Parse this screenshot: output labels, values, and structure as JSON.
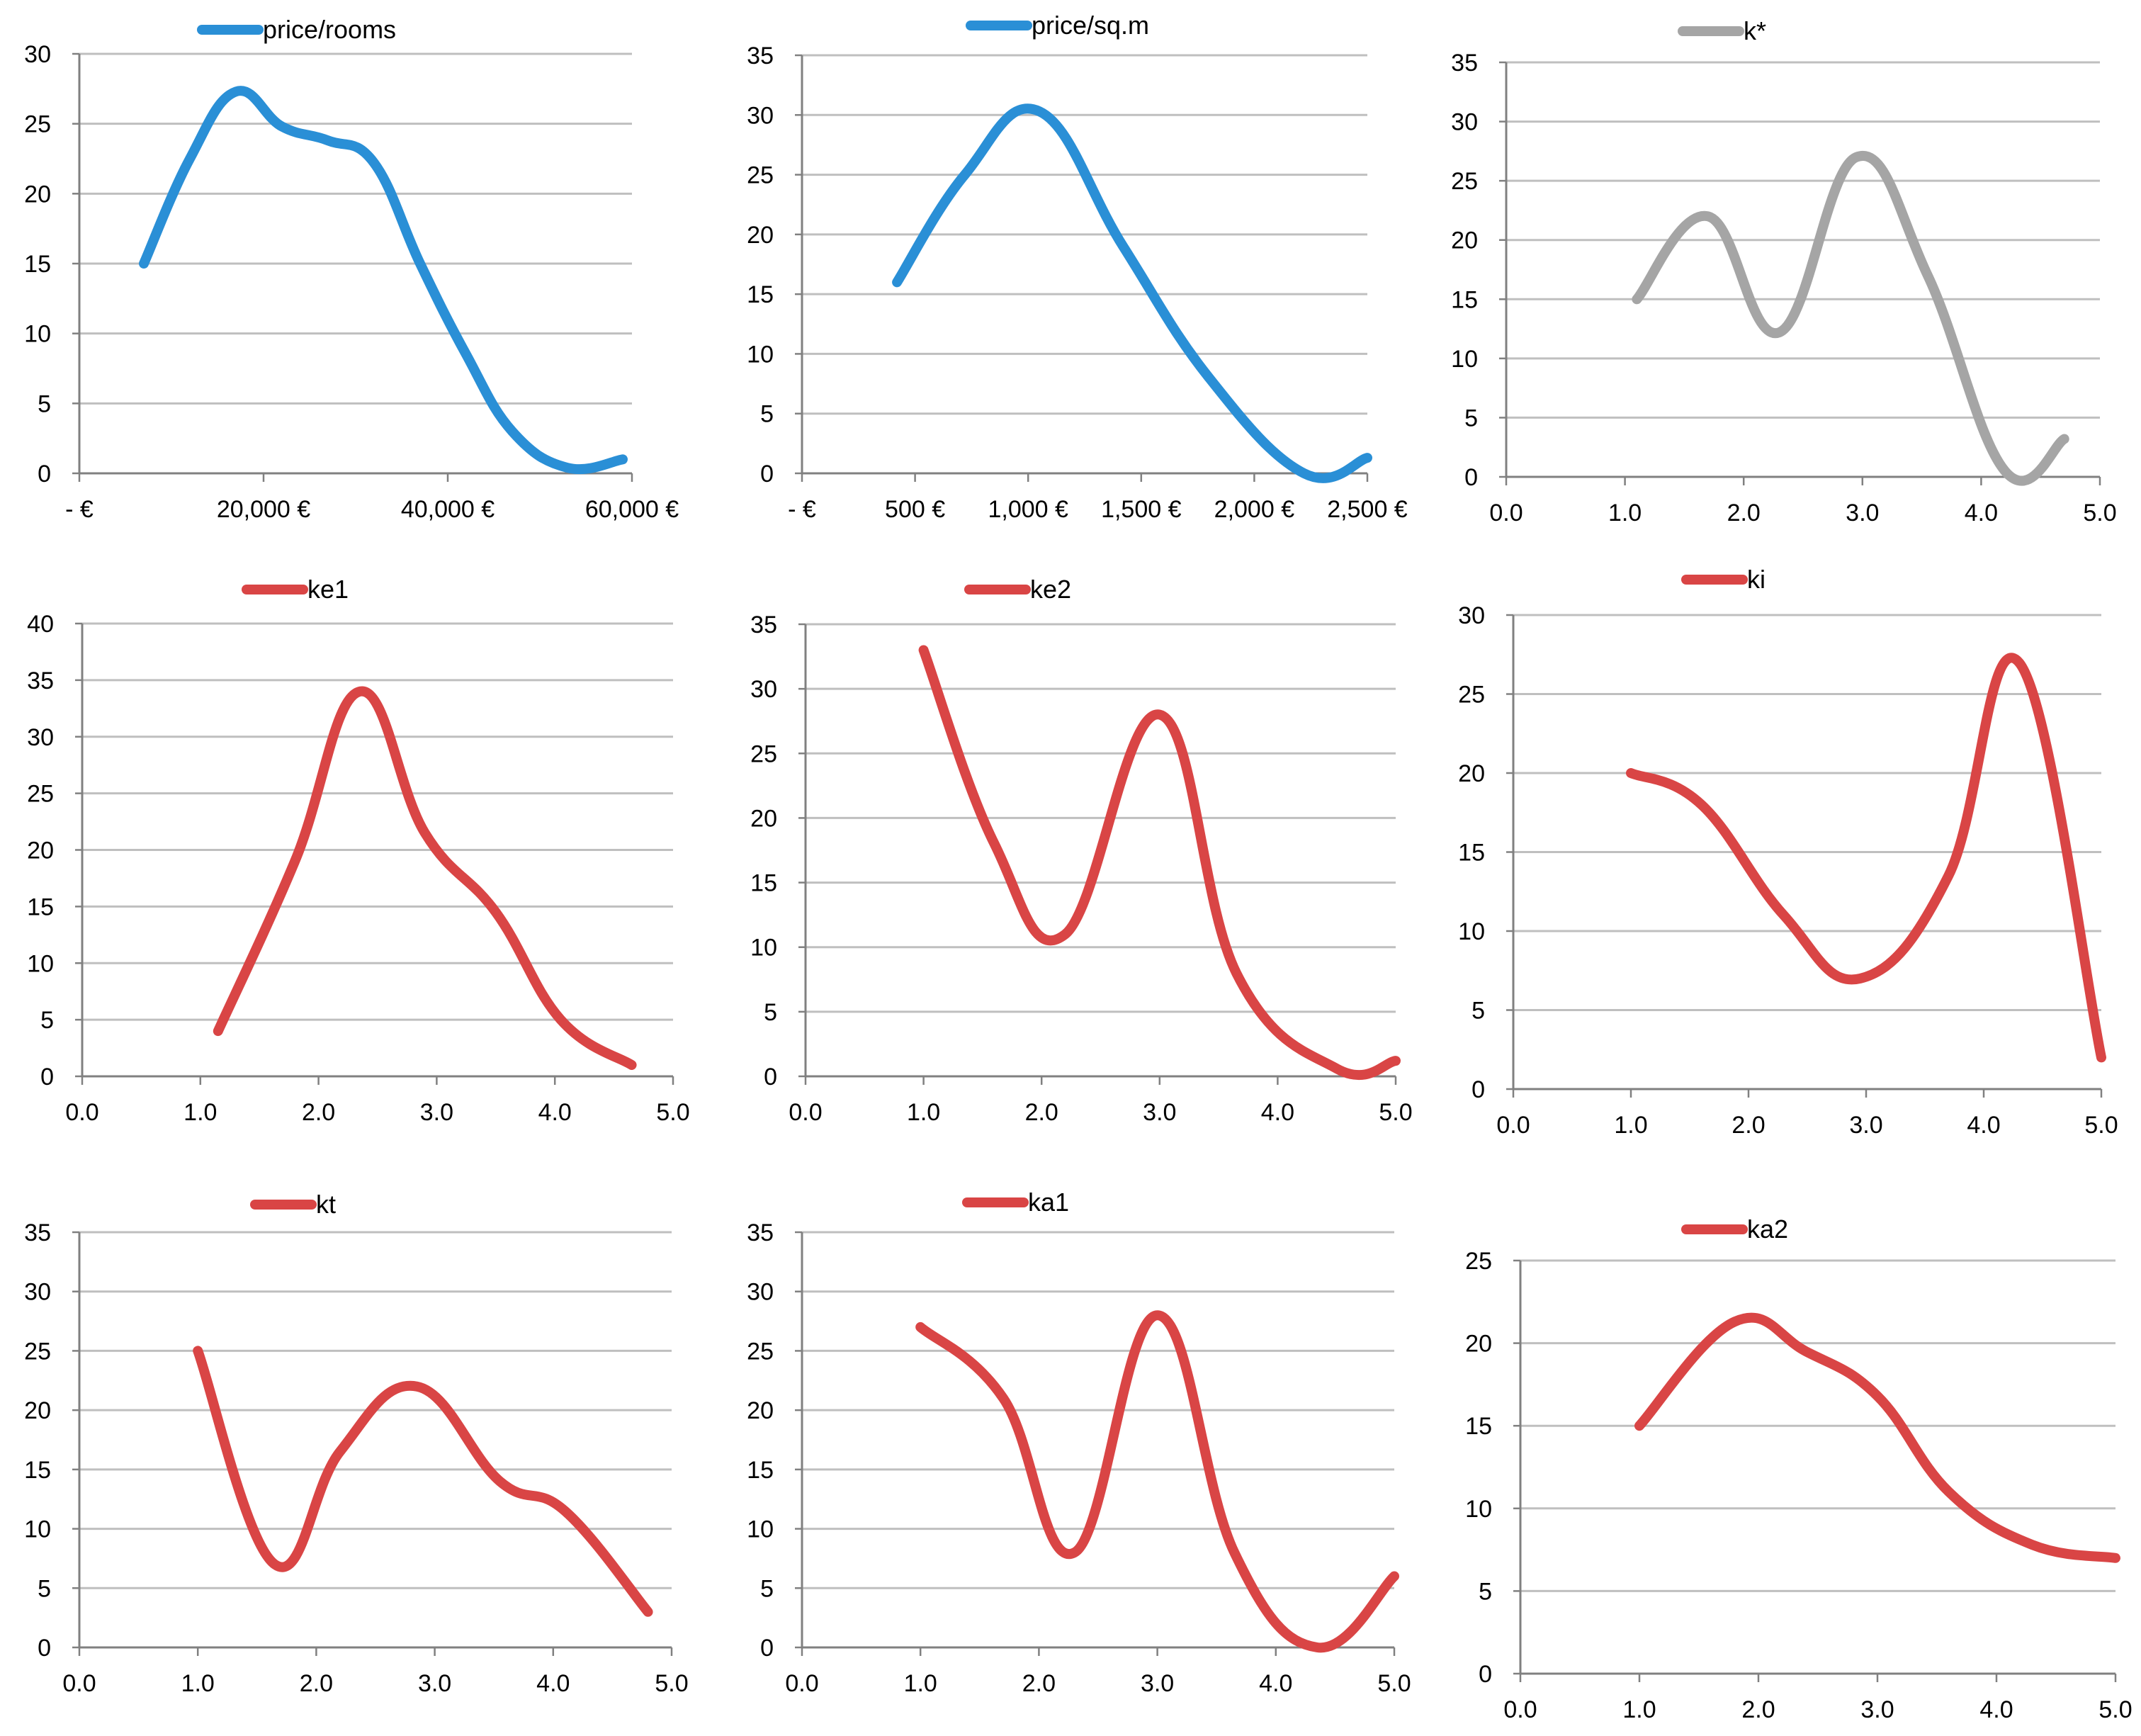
{
  "chart_data": [
    {
      "type": "line",
      "title": "",
      "legend": "price/rooms",
      "legend_position": "top",
      "color": "#2A8FD6",
      "x_tick_labels": [
        "-   €",
        "20,000 €",
        "40,000 €",
        "60,000 €"
      ],
      "x_ticks": [
        0,
        20000,
        40000,
        60000
      ],
      "xlim": [
        0,
        60000
      ],
      "y_tick_labels": [
        "0",
        "5",
        "10",
        "15",
        "20",
        "25",
        "30"
      ],
      "ylim": [
        0,
        30
      ],
      "y_step": 5,
      "grid": true,
      "x": [
        7000,
        12000,
        17000,
        22000,
        27000,
        32000,
        37000,
        42000,
        47000,
        53000,
        59000
      ],
      "y": [
        15,
        22.5,
        27.3,
        24.8,
        23.8,
        22.2,
        15,
        8.5,
        3,
        0.4,
        1
      ]
    },
    {
      "type": "line",
      "title": "",
      "legend": "price/sq.m",
      "legend_position": "top",
      "color": "#2A8FD6",
      "x_tick_labels": [
        "-   €",
        "500 €",
        "1,000 €",
        "1,500 €",
        "2,000 €",
        "2,500 €"
      ],
      "x_ticks": [
        0,
        500,
        1000,
        1500,
        2000,
        2500
      ],
      "xlim": [
        0,
        2500
      ],
      "y_tick_labels": [
        "0",
        "5",
        "10",
        "15",
        "20",
        "25",
        "30",
        "35"
      ],
      "ylim": [
        0,
        35
      ],
      "y_step": 5,
      "grid": true,
      "x": [
        420,
        720,
        1050,
        1420,
        1800,
        2220,
        2500
      ],
      "y": [
        16,
        25,
        30.3,
        19,
        8,
        0,
        1.3
      ]
    },
    {
      "type": "line",
      "title": "",
      "legend": "k*",
      "legend_position": "top",
      "color": "#A5A5A5",
      "x_tick_labels": [
        "0.0",
        "1.0",
        "2.0",
        "3.0",
        "4.0",
        "5.0"
      ],
      "x_ticks": [
        0,
        1,
        2,
        3,
        4,
        5
      ],
      "xlim": [
        0,
        5
      ],
      "y_tick_labels": [
        "0",
        "5",
        "10",
        "15",
        "20",
        "25",
        "30",
        "35"
      ],
      "ylim": [
        0,
        35
      ],
      "y_step": 5,
      "grid": true,
      "x": [
        1.1,
        1.7,
        2.3,
        2.95,
        3.55,
        4.2,
        4.7
      ],
      "y": [
        15,
        22,
        12.2,
        27,
        17,
        0.5,
        3.2
      ]
    },
    {
      "type": "line",
      "title": "",
      "legend": "ke1",
      "legend_position": "top",
      "color": "#D94545",
      "x_tick_labels": [
        "0.0",
        "1.0",
        "2.0",
        "3.0",
        "4.0",
        "5.0"
      ],
      "x_ticks": [
        0,
        1,
        2,
        3,
        4,
        5
      ],
      "xlim": [
        0,
        5
      ],
      "y_tick_labels": [
        "0",
        "5",
        "10",
        "15",
        "20",
        "25",
        "30",
        "35",
        "40"
      ],
      "ylim": [
        0,
        40
      ],
      "y_step": 5,
      "grid": true,
      "x": [
        1.15,
        1.8,
        2.35,
        2.9,
        3.5,
        4.05,
        4.65
      ],
      "y": [
        4,
        19,
        34,
        21.5,
        14.5,
        5,
        1
      ]
    },
    {
      "type": "line",
      "title": "",
      "legend": "ke2",
      "legend_position": "top",
      "color": "#D94545",
      "x_tick_labels": [
        "0.0",
        "1.0",
        "2.0",
        "3.0",
        "4.0",
        "5.0"
      ],
      "x_ticks": [
        0,
        1,
        2,
        3,
        4,
        5
      ],
      "xlim": [
        0,
        5
      ],
      "y_tick_labels": [
        "0",
        "5",
        "10",
        "15",
        "20",
        "25",
        "30",
        "35"
      ],
      "ylim": [
        0,
        35
      ],
      "y_step": 5,
      "grid": true,
      "x": [
        1.0,
        1.6,
        2.2,
        3.0,
        3.65,
        4.5,
        5.0
      ],
      "y": [
        33,
        18,
        11,
        28,
        8,
        0.6,
        1.2
      ]
    },
    {
      "type": "line",
      "title": "",
      "legend": "ki",
      "legend_position": "top",
      "color": "#D94545",
      "x_tick_labels": [
        "0.0",
        "1.0",
        "2.0",
        "3.0",
        "4.0",
        "5.0"
      ],
      "x_ticks": [
        0,
        1,
        2,
        3,
        4,
        5
      ],
      "xlim": [
        0,
        5
      ],
      "y_tick_labels": [
        "0",
        "5",
        "10",
        "15",
        "20",
        "25",
        "30"
      ],
      "ylim": [
        0,
        30
      ],
      "y_step": 5,
      "grid": true,
      "x": [
        1.0,
        1.6,
        2.3,
        2.95,
        3.7,
        4.3,
        5.0
      ],
      "y": [
        20,
        18,
        11,
        7,
        13.5,
        27,
        2
      ]
    },
    {
      "type": "line",
      "title": "",
      "legend": "kt",
      "legend_position": "top",
      "color": "#D94545",
      "x_tick_labels": [
        "0.0",
        "1.0",
        "2.0",
        "3.0",
        "4.0",
        "5.0"
      ],
      "x_ticks": [
        0,
        1,
        2,
        3,
        4,
        5
      ],
      "xlim": [
        0,
        5
      ],
      "y_tick_labels": [
        "0",
        "5",
        "10",
        "15",
        "20",
        "25",
        "30",
        "35"
      ],
      "ylim": [
        0,
        35
      ],
      "y_step": 5,
      "grid": true,
      "x": [
        1.0,
        1.65,
        2.2,
        2.85,
        3.55,
        4.1,
        4.8
      ],
      "y": [
        25,
        7,
        16.5,
        22,
        14,
        11.5,
        3
      ]
    },
    {
      "type": "line",
      "title": "",
      "legend": "ka1",
      "legend_position": "top",
      "color": "#D94545",
      "x_tick_labels": [
        "0.0",
        "1.0",
        "2.0",
        "3.0",
        "4.0",
        "5.0"
      ],
      "x_ticks": [
        0,
        1,
        2,
        3,
        4,
        5
      ],
      "xlim": [
        0,
        5
      ],
      "y_tick_labels": [
        "0",
        "5",
        "10",
        "15",
        "20",
        "25",
        "30",
        "35"
      ],
      "ylim": [
        0,
        35
      ],
      "y_step": 5,
      "grid": true,
      "x": [
        1.0,
        1.7,
        2.3,
        3.0,
        3.65,
        4.35,
        5.0
      ],
      "y": [
        27,
        21,
        8,
        28,
        8,
        0,
        6
      ]
    },
    {
      "type": "line",
      "title": "",
      "legend": "ka2",
      "legend_position": "top",
      "color": "#D94545",
      "x_tick_labels": [
        "0.0",
        "1.0",
        "2.0",
        "3.0",
        "4.0",
        "5.0"
      ],
      "x_ticks": [
        0,
        1,
        2,
        3,
        4,
        5
      ],
      "xlim": [
        0,
        5
      ],
      "y_tick_labels": [
        "0",
        "5",
        "10",
        "15",
        "20",
        "25"
      ],
      "ylim": [
        0,
        25
      ],
      "y_step": 5,
      "grid": true,
      "x": [
        1.0,
        1.8,
        2.4,
        3.0,
        3.6,
        4.3,
        5.0
      ],
      "y": [
        15,
        21.3,
        19.5,
        16.8,
        11,
        7.8,
        7
      ]
    }
  ]
}
